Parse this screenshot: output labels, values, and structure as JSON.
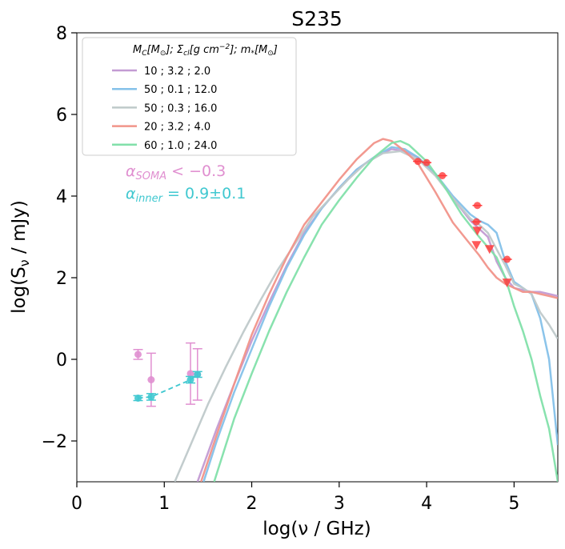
{
  "chart_data": {
    "type": "line",
    "title": "S235",
    "xlabel": "log(ν / GHz)",
    "ylabel": "log(S_ν / mJy)",
    "xlim": [
      0,
      5.5
    ],
    "ylim": [
      -3,
      8
    ],
    "xticks": [
      0,
      1,
      2,
      3,
      4,
      5
    ],
    "yticks": [
      -2,
      0,
      2,
      4,
      6,
      8
    ],
    "xtick_labels": [
      "0",
      "1",
      "2",
      "3",
      "4",
      "5"
    ],
    "ytick_labels": [
      "−2",
      "0",
      "2",
      "4",
      "6",
      "8"
    ],
    "legend": {
      "position": "top-left",
      "header": "M_C[M_⊙]; Σ_cl[g cm⁻²]; m_*[M_⊙]",
      "entries": [
        {
          "name": "10 ;        3.2 ;        2.0",
          "color": "#c39bd3"
        },
        {
          "name": "50 ;        0.1 ;      12.0",
          "color": "#85c1e9"
        },
        {
          "name": "50 ;        0.3 ;      16.0",
          "color": "#bfc9ca"
        },
        {
          "name": "20 ;        3.2 ;        4.0",
          "color": "#f1948a"
        },
        {
          "name": "60 ;        1.0 ;      24.0",
          "color": "#82e0aa"
        }
      ]
    },
    "annotations": [
      {
        "text": "α_SOMA < −0.3",
        "color": "#e08fd0"
      },
      {
        "text": "α_inner = 0.9±0.1",
        "color": "#40c8d0"
      }
    ],
    "series": [
      {
        "name": "10 ; 3.2 ; 2.0",
        "color": "#c39bd3",
        "x": [
          1.38,
          1.6,
          1.8,
          2.0,
          2.2,
          2.4,
          2.6,
          2.8,
          3.0,
          3.2,
          3.4,
          3.6,
          3.75,
          3.9,
          4.1,
          4.3,
          4.5,
          4.6,
          4.7,
          4.8,
          4.9,
          5.0,
          5.1,
          5.2,
          5.3,
          5.4,
          5.5
        ],
        "y": [
          -3.0,
          -1.7,
          -0.6,
          0.45,
          1.4,
          2.3,
          3.1,
          3.7,
          4.2,
          4.65,
          4.95,
          5.15,
          5.1,
          4.95,
          4.55,
          3.95,
          3.4,
          3.2,
          3.0,
          2.4,
          2.0,
          1.75,
          1.7,
          1.65,
          1.65,
          1.6,
          1.55
        ]
      },
      {
        "name": "50 ; 0.1 ; 12.0",
        "color": "#85c1e9",
        "x": [
          1.45,
          1.6,
          1.8,
          2.0,
          2.2,
          2.4,
          2.6,
          2.8,
          3.0,
          3.2,
          3.4,
          3.6,
          3.75,
          3.9,
          4.1,
          4.3,
          4.5,
          4.6,
          4.7,
          4.8,
          4.9,
          5.0,
          5.1,
          5.2,
          5.3,
          5.4,
          5.5
        ],
        "y": [
          -3.0,
          -2.0,
          -0.8,
          0.25,
          1.3,
          2.25,
          3.05,
          3.7,
          4.2,
          4.65,
          4.95,
          5.2,
          5.15,
          4.95,
          4.55,
          4.0,
          3.55,
          3.4,
          3.3,
          3.1,
          2.4,
          1.9,
          1.75,
          1.6,
          1.0,
          0.0,
          -2.1
        ]
      },
      {
        "name": "50 ; 0.3 ; 16.0",
        "color": "#bfc9ca",
        "x": [
          1.12,
          1.3,
          1.5,
          1.7,
          1.9,
          2.1,
          2.3,
          2.5,
          2.7,
          2.9,
          3.1,
          3.3,
          3.5,
          3.7,
          3.9,
          4.1,
          4.3,
          4.5,
          4.6,
          4.7,
          4.8,
          4.9,
          5.0,
          5.1,
          5.2,
          5.3,
          5.4,
          5.5
        ],
        "y": [
          -3.0,
          -2.1,
          -1.1,
          -0.2,
          0.65,
          1.45,
          2.2,
          2.85,
          3.5,
          3.95,
          4.4,
          4.8,
          5.05,
          5.1,
          4.9,
          4.5,
          3.95,
          3.45,
          3.3,
          3.1,
          2.7,
          2.3,
          1.85,
          1.75,
          1.6,
          1.15,
          0.85,
          0.5
        ]
      },
      {
        "name": "20 ; 3.2 ; 4.0",
        "color": "#f1948a",
        "x": [
          1.42,
          1.6,
          1.8,
          2.0,
          2.2,
          2.4,
          2.6,
          2.8,
          3.0,
          3.2,
          3.4,
          3.5,
          3.6,
          3.75,
          3.9,
          4.1,
          4.3,
          4.45,
          4.6,
          4.7,
          4.8,
          4.9,
          5.0,
          5.1,
          5.2,
          5.3,
          5.4,
          5.5
        ],
        "y": [
          -3.0,
          -1.85,
          -0.6,
          0.6,
          1.6,
          2.5,
          3.3,
          3.85,
          4.4,
          4.9,
          5.3,
          5.4,
          5.35,
          5.1,
          4.8,
          4.1,
          3.35,
          2.95,
          2.55,
          2.25,
          2.0,
          1.85,
          1.75,
          1.65,
          1.65,
          1.6,
          1.55,
          1.5
        ]
      },
      {
        "name": "60 ; 1.0 ; 24.0",
        "color": "#82e0aa",
        "x": [
          1.57,
          1.8,
          2.0,
          2.2,
          2.4,
          2.6,
          2.8,
          3.0,
          3.2,
          3.4,
          3.6,
          3.7,
          3.8,
          4.0,
          4.2,
          4.4,
          4.6,
          4.8,
          4.9,
          5.0,
          5.1,
          5.2,
          5.3,
          5.4,
          5.5
        ],
        "y": [
          -3.0,
          -1.45,
          -0.35,
          0.7,
          1.65,
          2.5,
          3.3,
          3.9,
          4.45,
          4.95,
          5.3,
          5.35,
          5.25,
          4.85,
          4.25,
          3.55,
          3.0,
          2.5,
          2.0,
          1.3,
          0.7,
          0.0,
          -0.9,
          -1.7,
          -3.0
        ]
      },
      {
        "name": "SOMA points",
        "color": "#e08fd0",
        "kind": "errorbar",
        "x": [
          0.7,
          0.85,
          1.3,
          1.38
        ],
        "y": [
          0.12,
          -0.5,
          -0.35,
          -0.37
        ],
        "yerr": [
          0.12,
          0.65,
          0.75,
          0.63
        ]
      },
      {
        "name": "inner points",
        "color": "#40c8d0",
        "kind": "errorbar-line",
        "x": [
          0.7,
          0.85,
          1.3,
          1.38
        ],
        "y": [
          -0.95,
          -0.92,
          -0.5,
          -0.37
        ],
        "yerr": [
          0.06,
          0.08,
          0.08,
          0.07
        ]
      },
      {
        "name": "SED measurements",
        "color": "#ff3b3b",
        "kind": "points",
        "x": [
          3.9,
          4.0,
          4.18,
          4.58,
          4.57,
          4.92
        ],
        "y": [
          4.85,
          4.82,
          4.5,
          3.77,
          3.37,
          2.45
        ]
      },
      {
        "name": "upper limits",
        "color": "#ff3b3b",
        "kind": "upper-limit",
        "x": [
          4.57,
          4.58,
          4.72,
          4.92
        ],
        "y": [
          2.8,
          3.15,
          2.7,
          1.88
        ]
      }
    ]
  }
}
